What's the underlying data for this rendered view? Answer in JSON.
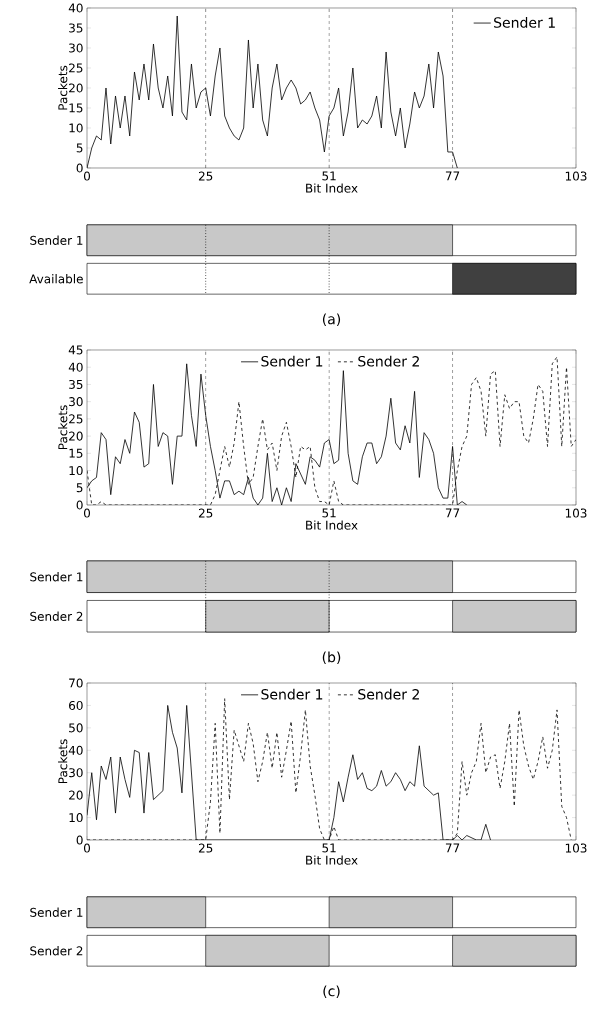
{
  "chart_data": [
    {
      "type": "line",
      "xlabel": "Bit Index",
      "ylabel": "Packets",
      "xlim": [
        0,
        103
      ],
      "ylim": [
        0,
        40
      ],
      "xticks": [
        0,
        25,
        51,
        77,
        103
      ],
      "yticks": [
        0,
        5,
        10,
        15,
        20,
        25,
        30,
        35,
        40
      ],
      "legend": "top right",
      "x": [
        0,
        1,
        2,
        3,
        4,
        5,
        6,
        7,
        8,
        9,
        10,
        11,
        12,
        13,
        14,
        15,
        16,
        17,
        18,
        19,
        20,
        21,
        22,
        23,
        24,
        25,
        26,
        27,
        28,
        29,
        30,
        31,
        32,
        33,
        34,
        35,
        36,
        37,
        38,
        39,
        40,
        41,
        42,
        43,
        44,
        45,
        46,
        47,
        48,
        49,
        50,
        51,
        52,
        53,
        54,
        55,
        56,
        57,
        58,
        59,
        60,
        61,
        62,
        63,
        64,
        65,
        66,
        67,
        68,
        69,
        70,
        71,
        72,
        73,
        74,
        75,
        76,
        77,
        78
      ],
      "series": [
        {
          "name": "Sender 1",
          "color": "#000000",
          "line_style": "solid",
          "values": [
            0,
            5,
            8,
            7,
            20,
            6,
            18,
            10,
            18,
            8,
            24,
            17,
            26,
            17,
            31,
            20,
            15,
            23,
            13,
            38,
            14,
            12,
            26,
            15,
            19,
            20,
            13,
            23,
            30,
            13,
            10,
            8,
            7,
            10,
            32,
            15,
            26,
            12,
            8,
            20,
            26,
            17,
            20,
            22,
            20,
            16,
            17,
            19,
            15,
            12,
            4,
            13,
            15,
            20,
            8,
            14,
            25,
            10,
            12,
            11,
            13,
            18,
            10,
            29,
            14,
            8,
            15,
            5,
            11,
            19,
            15,
            18,
            26,
            15,
            29,
            23,
            4,
            4,
            0
          ]
        }
      ],
      "ref_lines": [
        {
          "axis": "x",
          "value": 25,
          "line_style": "dashed"
        },
        {
          "axis": "x",
          "value": 51,
          "line_style": "dashed"
        },
        {
          "axis": "x",
          "value": 77,
          "line_style": "dashed"
        }
      ]
    },
    {
      "type": "bar",
      "orientation": "horizontal",
      "categories": [
        "Sender 1",
        "Available"
      ],
      "xlim": [
        0,
        103
      ],
      "tick_labels": "y",
      "series": [
        {
          "color": "#c8c8c8",
          "base": [
            0,
            null
          ],
          "values": [
            77,
            null
          ]
        },
        {
          "color": "#404040",
          "base": [
            null,
            77
          ],
          "values": [
            null,
            26
          ]
        }
      ],
      "ref_lines": [
        {
          "axis": "x",
          "value": 25,
          "line_style": "dotted"
        },
        {
          "axis": "x",
          "value": 51,
          "line_style": "dotted"
        }
      ],
      "annotations": [
        "(a)"
      ]
    },
    {
      "type": "line",
      "xlabel": "Bit Index",
      "ylabel": "Packets",
      "xlim": [
        0,
        103
      ],
      "ylim": [
        0,
        45
      ],
      "xticks": [
        0,
        25,
        51,
        77,
        103
      ],
      "yticks": [
        0,
        5,
        10,
        15,
        20,
        25,
        30,
        35,
        40,
        45
      ],
      "legend": "top",
      "x": [
        0,
        1,
        2,
        3,
        4,
        5,
        6,
        7,
        8,
        9,
        10,
        11,
        12,
        13,
        14,
        15,
        16,
        17,
        18,
        19,
        20,
        21,
        22,
        23,
        24,
        25,
        26,
        27,
        28,
        29,
        30,
        31,
        32,
        33,
        34,
        35,
        36,
        37,
        38,
        39,
        40,
        41,
        42,
        43,
        44,
        45,
        46,
        47,
        48,
        49,
        50,
        51,
        52,
        53,
        54,
        55,
        56,
        57,
        58,
        59,
        60,
        61,
        62,
        63,
        64,
        65,
        66,
        67,
        68,
        69,
        70,
        71,
        72,
        73,
        74,
        75,
        76,
        77,
        78,
        79,
        80,
        81,
        82,
        83,
        84,
        85,
        86,
        87,
        88,
        89,
        90,
        91,
        92,
        93,
        94,
        95,
        96,
        97,
        98,
        99,
        100,
        101,
        102,
        103
      ],
      "series": [
        {
          "name": "Sender 1",
          "color": "#000000",
          "line_style": "solid",
          "values": [
            5,
            7,
            8,
            21,
            19,
            3,
            14,
            12,
            19,
            15,
            27,
            24,
            11,
            12,
            35,
            17,
            21,
            20,
            6,
            20,
            20,
            41,
            26,
            17,
            38,
            26,
            17,
            10,
            2,
            7,
            7,
            3,
            4,
            3,
            8,
            2,
            0,
            2,
            15,
            1,
            5,
            0,
            5,
            1,
            12,
            9,
            6,
            14,
            13,
            11,
            18,
            19,
            12,
            13,
            39,
            15,
            7,
            6,
            14,
            18,
            18,
            12,
            14,
            20,
            31,
            18,
            16,
            23,
            18,
            33,
            8,
            21,
            19,
            15,
            5,
            2,
            2,
            17,
            0,
            1,
            0,
            null,
            null,
            null,
            null,
            null,
            null,
            null,
            null,
            null,
            null,
            null,
            null,
            null,
            null,
            null,
            null,
            null,
            null,
            null,
            null,
            null,
            null,
            null
          ]
        },
        {
          "name": "Sender 2",
          "color": "#000000",
          "line_style": "dashed",
          "values": [
            10,
            0,
            0,
            1,
            0,
            0,
            0,
            0,
            0,
            0,
            0,
            0,
            0,
            0,
            0,
            0,
            0,
            0,
            0,
            0,
            0,
            0,
            0,
            0,
            0,
            0,
            0,
            3,
            10,
            17,
            11,
            18,
            30,
            17,
            6,
            8,
            17,
            25,
            16,
            18,
            10,
            20,
            24,
            17,
            8,
            17,
            16,
            17,
            5,
            1,
            1,
            0,
            7,
            1,
            0,
            0,
            0,
            0,
            0,
            0,
            0,
            0,
            0,
            0,
            0,
            0,
            0,
            0,
            0,
            0,
            0,
            0,
            0,
            0,
            0,
            0,
            0,
            0,
            10,
            17,
            20,
            35,
            37,
            33,
            20,
            38,
            39,
            17,
            32,
            28,
            30,
            30,
            20,
            18,
            25,
            35,
            33,
            17,
            41,
            43,
            17,
            40,
            17,
            19
          ]
        }
      ],
      "ref_lines": [
        {
          "axis": "x",
          "value": 25,
          "line_style": "dashed"
        },
        {
          "axis": "x",
          "value": 51,
          "line_style": "dashed"
        },
        {
          "axis": "x",
          "value": 77,
          "line_style": "dashed"
        }
      ]
    },
    {
      "type": "bar",
      "orientation": "horizontal",
      "categories": [
        "Sender 1",
        "Sender 2"
      ],
      "xlim": [
        0,
        103
      ],
      "tick_labels": "y",
      "series": [
        {
          "color": "#c8c8c8",
          "base": [
            0,
            25
          ],
          "values": [
            77,
            26
          ]
        },
        {
          "color": "#c8c8c8",
          "base": [
            null,
            77
          ],
          "values": [
            null,
            26
          ]
        }
      ],
      "ref_lines": [
        {
          "axis": "x",
          "value": 25,
          "line_style": "dotted"
        },
        {
          "axis": "x",
          "value": 51,
          "line_style": "dotted"
        }
      ],
      "annotations": [
        "(b)"
      ]
    },
    {
      "type": "line",
      "xlabel": "Bit Index",
      "ylabel": "Packets",
      "xlim": [
        0,
        103
      ],
      "ylim": [
        0,
        70
      ],
      "xticks": [
        0,
        25,
        51,
        77,
        103
      ],
      "yticks": [
        0,
        10,
        20,
        30,
        40,
        50,
        60,
        70
      ],
      "legend": "top",
      "x": [
        0,
        1,
        2,
        3,
        4,
        5,
        6,
        7,
        8,
        9,
        10,
        11,
        12,
        13,
        14,
        15,
        16,
        17,
        18,
        19,
        20,
        21,
        22,
        23,
        24,
        25,
        26,
        27,
        28,
        29,
        30,
        31,
        32,
        33,
        34,
        35,
        36,
        37,
        38,
        39,
        40,
        41,
        42,
        43,
        44,
        45,
        46,
        47,
        48,
        49,
        50,
        51,
        52,
        53,
        54,
        55,
        56,
        57,
        58,
        59,
        60,
        61,
        62,
        63,
        64,
        65,
        66,
        67,
        68,
        69,
        70,
        71,
        72,
        73,
        74,
        75,
        76,
        77,
        78,
        79,
        80,
        81,
        82,
        83,
        84,
        85,
        86,
        87,
        88,
        89,
        90,
        91,
        92,
        93,
        94,
        95,
        96,
        97,
        98,
        99,
        100,
        101,
        102
      ],
      "series": [
        {
          "name": "Sender 1",
          "color": "#000000",
          "line_style": "solid",
          "values": [
            11,
            30,
            9,
            33,
            27,
            37,
            12,
            37,
            27,
            19,
            40,
            39,
            12,
            39,
            18,
            20,
            22,
            60,
            48,
            41,
            21,
            60,
            30,
            0,
            0,
            0,
            0,
            0,
            0,
            0,
            0,
            0,
            0,
            0,
            0,
            0,
            0,
            0,
            0,
            0,
            0,
            0,
            0,
            0,
            0,
            0,
            0,
            0,
            0,
            0,
            0,
            0,
            10,
            26,
            17,
            28,
            38,
            27,
            30,
            23,
            22,
            24,
            31,
            24,
            26,
            30,
            27,
            22,
            26,
            24,
            42,
            24,
            22,
            20,
            21,
            0,
            0,
            0,
            2,
            0,
            2,
            1,
            0,
            0,
            7,
            0,
            null,
            null,
            null,
            null,
            null,
            null,
            null,
            null,
            null,
            null,
            null,
            null,
            null,
            null,
            null,
            null,
            null
          ]
        },
        {
          "name": "Sender 2",
          "color": "#000000",
          "line_style": "dashed",
          "values": [
            0,
            0,
            0,
            0,
            0,
            0,
            0,
            0,
            0,
            0,
            0,
            0,
            0,
            0,
            0,
            0,
            0,
            0,
            0,
            0,
            0,
            0,
            0,
            0,
            0,
            0,
            17,
            52,
            3,
            63,
            18,
            49,
            42,
            35,
            52,
            43,
            26,
            35,
            48,
            32,
            48,
            28,
            40,
            53,
            21,
            38,
            58,
            33,
            20,
            5,
            0,
            0,
            6,
            0,
            0,
            0,
            0,
            0,
            0,
            0,
            0,
            0,
            0,
            0,
            0,
            0,
            0,
            0,
            0,
            0,
            0,
            0,
            0,
            0,
            0,
            0,
            0,
            0,
            3,
            35,
            20,
            30,
            35,
            52,
            30,
            37,
            38,
            23,
            35,
            52,
            15,
            58,
            42,
            33,
            27,
            35,
            46,
            32,
            40,
            58,
            15,
            10,
            0
          ]
        }
      ],
      "ref_lines": [
        {
          "axis": "x",
          "value": 25,
          "line_style": "dashed"
        },
        {
          "axis": "x",
          "value": 51,
          "line_style": "dashed"
        },
        {
          "axis": "x",
          "value": 77,
          "line_style": "dashed"
        }
      ]
    },
    {
      "type": "bar",
      "orientation": "horizontal",
      "categories": [
        "Sender 1",
        "Sender 2"
      ],
      "xlim": [
        0,
        103
      ],
      "tick_labels": "y",
      "series": [
        {
          "color": "#c8c8c8",
          "base": [
            0,
            25
          ],
          "values": [
            25,
            26
          ]
        },
        {
          "color": "#c8c8c8",
          "base": [
            51,
            77
          ],
          "values": [
            26,
            26
          ]
        }
      ],
      "annotations": [
        "(c)"
      ]
    }
  ]
}
